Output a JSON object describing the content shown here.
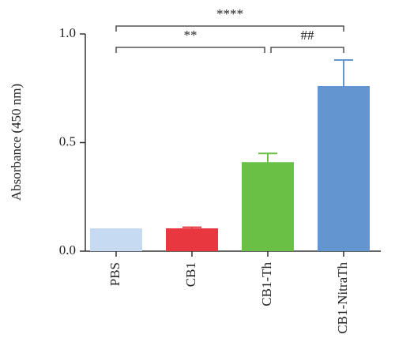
{
  "chart_data": {
    "type": "bar",
    "y_label": "Absorbance (450 nm)",
    "categories": [
      "PBS",
      "CB1",
      "CB1-Th",
      "CB1-NitraTh"
    ],
    "values": [
      0.105,
      0.105,
      0.41,
      0.76
    ],
    "errors": [
      0,
      0.005,
      0.04,
      0.12
    ],
    "colors": [
      "#c6dbf1",
      "#e8373f",
      "#6abf45",
      "#6396d0"
    ],
    "ylim": [
      0,
      1.0
    ],
    "yticks": [
      {
        "value": 0,
        "label": "0.0"
      },
      0.5,
      {
        "value": 1.0,
        "label": "1.0"
      }
    ],
    "annotations": [
      {
        "text": "****",
        "from": 0,
        "to": 3,
        "level": 2
      },
      {
        "text": "**",
        "from": 0,
        "to": 2,
        "level": 1
      },
      {
        "text": "##",
        "from": 2,
        "to": 3,
        "level": 1
      }
    ]
  }
}
